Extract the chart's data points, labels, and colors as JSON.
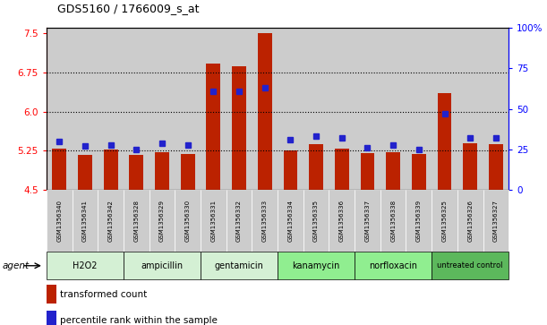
{
  "title": "GDS5160 / 1766009_s_at",
  "samples": [
    "GSM1356340",
    "GSM1356341",
    "GSM1356342",
    "GSM1356328",
    "GSM1356329",
    "GSM1356330",
    "GSM1356331",
    "GSM1356332",
    "GSM1356333",
    "GSM1356334",
    "GSM1356335",
    "GSM1356336",
    "GSM1356337",
    "GSM1356338",
    "GSM1356339",
    "GSM1356325",
    "GSM1356326",
    "GSM1356327"
  ],
  "bar_values": [
    5.3,
    5.18,
    5.28,
    5.17,
    5.22,
    5.19,
    6.92,
    6.87,
    7.5,
    5.25,
    5.37,
    5.3,
    5.2,
    5.22,
    5.19,
    6.35,
    5.4,
    5.37
  ],
  "blue_values": [
    30,
    27,
    28,
    25,
    29,
    28,
    61,
    61,
    63,
    31,
    33,
    32,
    26,
    28,
    25,
    47,
    32,
    32
  ],
  "groups": [
    {
      "label": "H2O2",
      "start": 0,
      "end": 3,
      "color": "#d4f0d4"
    },
    {
      "label": "ampicillin",
      "start": 3,
      "end": 6,
      "color": "#d4f0d4"
    },
    {
      "label": "gentamicin",
      "start": 6,
      "end": 9,
      "color": "#d4f0d4"
    },
    {
      "label": "kanamycin",
      "start": 9,
      "end": 12,
      "color": "#90ee90"
    },
    {
      "label": "norfloxacin",
      "start": 12,
      "end": 15,
      "color": "#90ee90"
    },
    {
      "label": "untreated control",
      "start": 15,
      "end": 18,
      "color": "#5cb85c"
    }
  ],
  "ylim_left": [
    4.5,
    7.6
  ],
  "ylim_right": [
    0,
    100
  ],
  "yticks_left": [
    4.5,
    5.25,
    6.0,
    6.75,
    7.5
  ],
  "yticks_right": [
    0,
    25,
    50,
    75,
    100
  ],
  "bar_color": "#bb2200",
  "blue_color": "#2222cc",
  "col_bg_color": "#cccccc",
  "background_color": "#ffffff",
  "legend_transformed": "transformed count",
  "legend_percentile": "percentile rank within the sample",
  "bar_width": 0.55,
  "ybase": 4.5,
  "hline_values": [
    5.25,
    6.0,
    6.75
  ]
}
